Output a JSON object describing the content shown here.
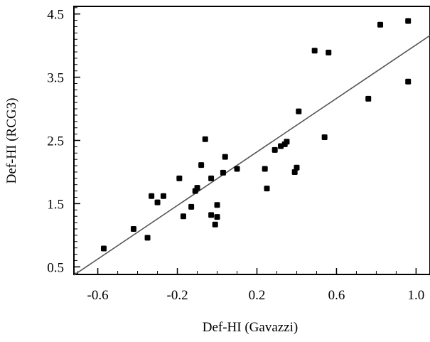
{
  "chart_data": {
    "type": "scatter",
    "title": "",
    "xlabel": "Def-HI (Gavazzi)",
    "ylabel": "Def-HI  (RCG3)",
    "xlim": [
      -0.72,
      1.07
    ],
    "ylim": [
      0.38,
      4.62
    ],
    "x_ticks": [
      -0.6,
      -0.2,
      0.2,
      0.6,
      1.0
    ],
    "x_tick_labels": [
      "-0.6",
      "-0.2",
      "0.2",
      "0.6",
      "1.0"
    ],
    "y_ticks": [
      0.5,
      1.5,
      2.5,
      3.5,
      4.5
    ],
    "y_tick_labels": [
      "0.5",
      "1.5",
      "2.5",
      "3.5",
      "4.5"
    ],
    "grid": false,
    "legend": "none",
    "fit_line": {
      "x": [
        -0.72,
        1.07
      ],
      "y": [
        0.37,
        4.16
      ]
    },
    "points": [
      {
        "x": -0.57,
        "y": 0.79
      },
      {
        "x": -0.42,
        "y": 1.1
      },
      {
        "x": -0.35,
        "y": 0.96
      },
      {
        "x": -0.33,
        "y": 1.62
      },
      {
        "x": -0.3,
        "y": 1.52
      },
      {
        "x": -0.27,
        "y": 1.62
      },
      {
        "x": -0.19,
        "y": 1.9
      },
      {
        "x": -0.17,
        "y": 1.3
      },
      {
        "x": -0.13,
        "y": 1.45
      },
      {
        "x": -0.11,
        "y": 1.7
      },
      {
        "x": -0.1,
        "y": 1.75
      },
      {
        "x": -0.08,
        "y": 2.11
      },
      {
        "x": -0.06,
        "y": 2.52
      },
      {
        "x": -0.03,
        "y": 1.32
      },
      {
        "x": -0.03,
        "y": 1.9
      },
      {
        "x": -0.01,
        "y": 1.17
      },
      {
        "x": 0.0,
        "y": 1.29
      },
      {
        "x": 0.0,
        "y": 1.48
      },
      {
        "x": 0.03,
        "y": 1.99
      },
      {
        "x": 0.04,
        "y": 2.24
      },
      {
        "x": 0.1,
        "y": 2.05
      },
      {
        "x": 0.24,
        "y": 2.05
      },
      {
        "x": 0.25,
        "y": 1.74
      },
      {
        "x": 0.29,
        "y": 2.35
      },
      {
        "x": 0.32,
        "y": 2.41
      },
      {
        "x": 0.34,
        "y": 2.44
      },
      {
        "x": 0.35,
        "y": 2.48
      },
      {
        "x": 0.39,
        "y": 2.0
      },
      {
        "x": 0.4,
        "y": 2.07
      },
      {
        "x": 0.41,
        "y": 2.96
      },
      {
        "x": 0.49,
        "y": 3.92
      },
      {
        "x": 0.54,
        "y": 2.55
      },
      {
        "x": 0.56,
        "y": 3.89
      },
      {
        "x": 0.76,
        "y": 3.16
      },
      {
        "x": 0.82,
        "y": 4.33
      },
      {
        "x": 0.96,
        "y": 4.39
      },
      {
        "x": 0.96,
        "y": 3.43
      }
    ]
  }
}
